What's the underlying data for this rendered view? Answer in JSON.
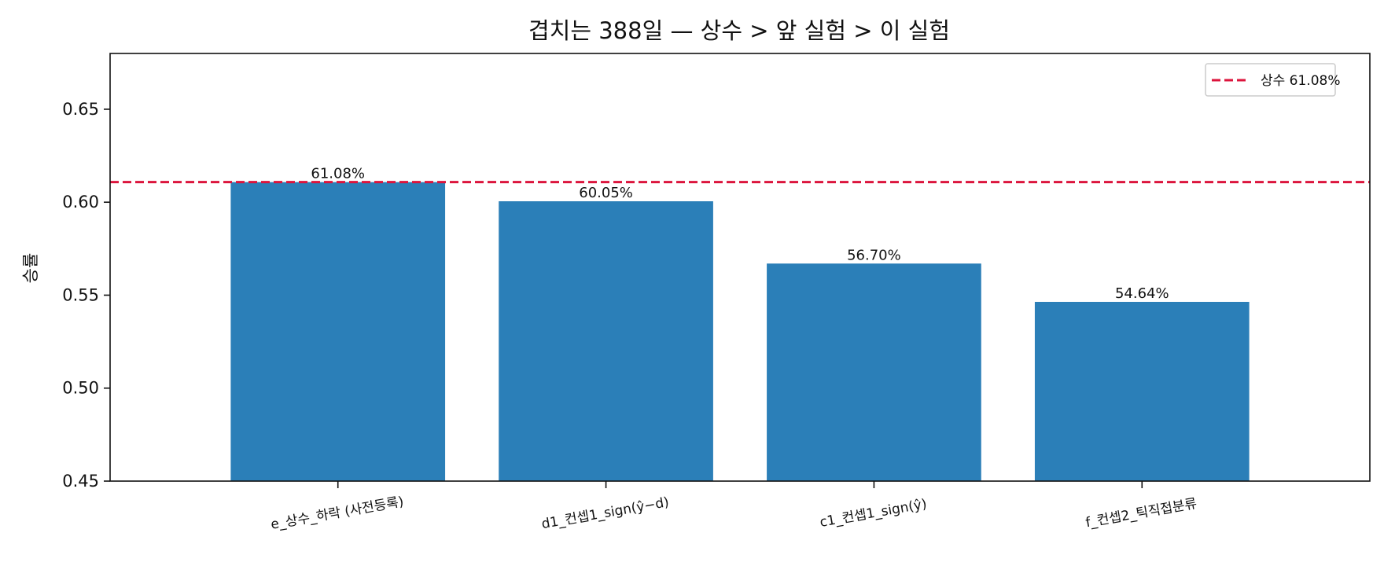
{
  "chart_data": {
    "type": "bar",
    "title": "겹치는 388일 — 상수 > 앞 실험 > 이 실험",
    "xlabel": "",
    "ylabel": "승률",
    "categories": [
      "e_상수_하락 (사전등록)",
      "d1_컨셉1_sign(ŷ−d)",
      "c1_컨셉1_sign(ŷ)",
      "f_컨셉2_틱직접분류"
    ],
    "values": [
      0.6108,
      0.6005,
      0.567,
      0.5464
    ],
    "value_labels": [
      "61.08%",
      "60.05%",
      "56.70%",
      "54.64%"
    ],
    "ylim": [
      0.45,
      0.68
    ],
    "yticks": [
      0.45,
      0.5,
      0.55,
      0.6,
      0.65
    ],
    "ytick_labels": [
      "0.45",
      "0.50",
      "0.55",
      "0.60",
      "0.65"
    ],
    "reference_line": {
      "value": 0.6108,
      "label": "상수 61.08%",
      "style": "dashed",
      "color": "#dc143c"
    },
    "bar_color": "#2b7fb8",
    "legend_position": "top-right",
    "grid": false
  }
}
